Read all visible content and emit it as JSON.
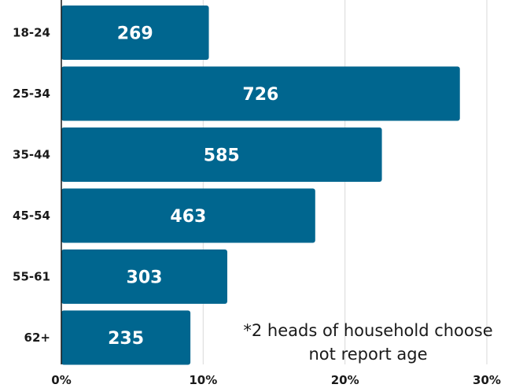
{
  "chart_data": {
    "type": "bar",
    "orientation": "horizontal",
    "categories": [
      "18-24",
      "25-34",
      "35-44",
      "45-54",
      "55-61",
      "62+"
    ],
    "values": [
      10.4,
      28.1,
      22.6,
      17.9,
      11.7,
      9.1
    ],
    "value_labels": [
      "269",
      "726",
      "585",
      "463",
      "303",
      "235"
    ],
    "xlim": [
      0,
      30
    ],
    "x_ticks": [
      0,
      10,
      20,
      30
    ],
    "x_tick_labels": [
      "0%",
      "10%",
      "20%",
      "30%"
    ],
    "grid": true,
    "title": "",
    "xlabel": "",
    "ylabel": "",
    "bar_color": "#00668f",
    "label_color": "#ffffff",
    "grid_color": "#d9d9d9",
    "axis_color": "#1a1a1a",
    "note_lines": [
      "*2 heads of household choose",
      "not report age"
    ]
  }
}
